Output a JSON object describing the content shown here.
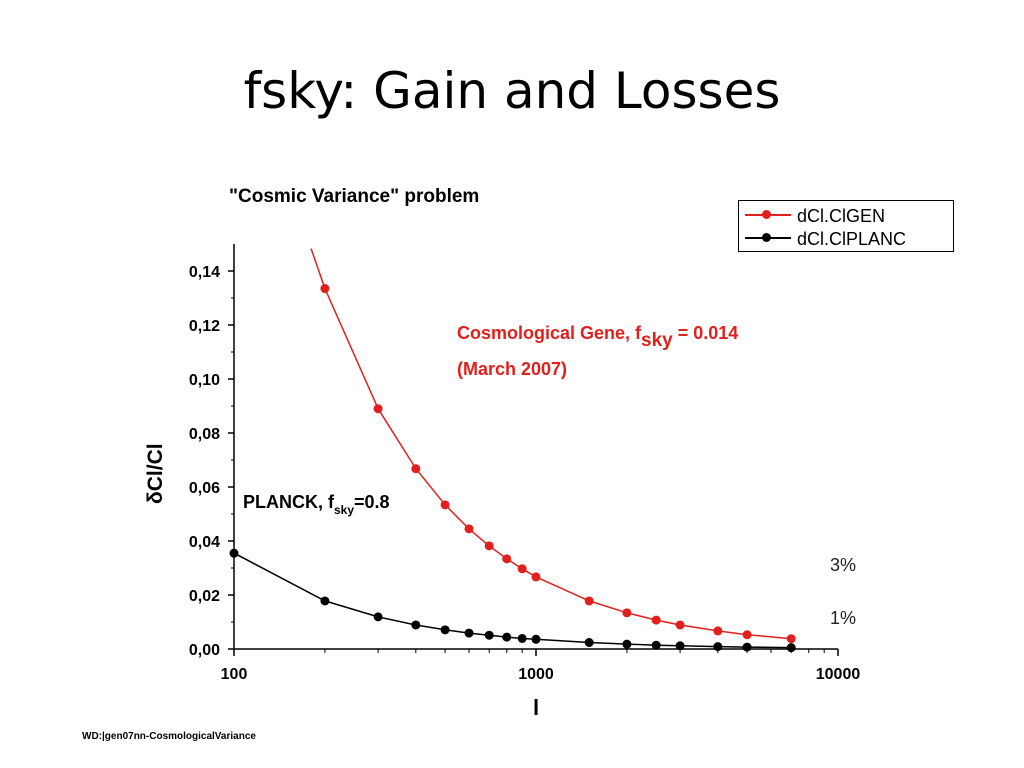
{
  "slide": {
    "title": "fsky: Gain and Losses",
    "footer": "WD:|gen07nn-CosmologicalVariance"
  },
  "chart_data": {
    "type": "line",
    "title": "\"Cosmic Variance\" problem",
    "xlabel": "l",
    "ylabel": "δCl/Cl",
    "x_scale": "log",
    "xlim": [
      100,
      10000
    ],
    "ylim": [
      0,
      0.15
    ],
    "x_ticks": [
      "100",
      "1000",
      "10000"
    ],
    "y_ticks": [
      "0,00",
      "0,02",
      "0,04",
      "0,06",
      "0,08",
      "0,10",
      "0,12",
      "0,14"
    ],
    "legend_position": "top-right",
    "grid": false,
    "series": [
      {
        "name": "dCl.ClGEN",
        "color": "#e0201c",
        "x": [
          200,
          300,
          400,
          500,
          600,
          700,
          800,
          900,
          1000,
          1500,
          2000,
          2500,
          3000,
          4000,
          5000,
          7000
        ],
        "y": [
          0.1335,
          0.089,
          0.0668,
          0.0534,
          0.0445,
          0.0382,
          0.0334,
          0.0297,
          0.0267,
          0.0178,
          0.0134,
          0.0107,
          0.0089,
          0.0067,
          0.0053,
          0.0038
        ],
        "curve_start": {
          "x": 180,
          "y": 0.1483
        }
      },
      {
        "name": "dCl.ClPLANC",
        "color": "#000000",
        "x": [
          100,
          200,
          300,
          400,
          500,
          600,
          700,
          800,
          900,
          1000,
          1500,
          2000,
          2500,
          3000,
          4000,
          5000,
          7000
        ],
        "y": [
          0.0355,
          0.0178,
          0.0119,
          0.0089,
          0.0071,
          0.0059,
          0.0051,
          0.0044,
          0.0039,
          0.0036,
          0.0024,
          0.0018,
          0.0014,
          0.0012,
          0.0009,
          0.0007,
          0.0005
        ]
      }
    ],
    "annotations": {
      "red_line1_prefix": "Cosmological Gene, f",
      "red_line1_sub": "sky",
      "red_line1_suffix": " = 0.014",
      "red_line2": "(March 2007)",
      "black_prefix": "PLANCK, f",
      "black_sub": "sky",
      "black_suffix": "=0.8",
      "pct_high": "3%",
      "pct_low": "1%"
    }
  }
}
